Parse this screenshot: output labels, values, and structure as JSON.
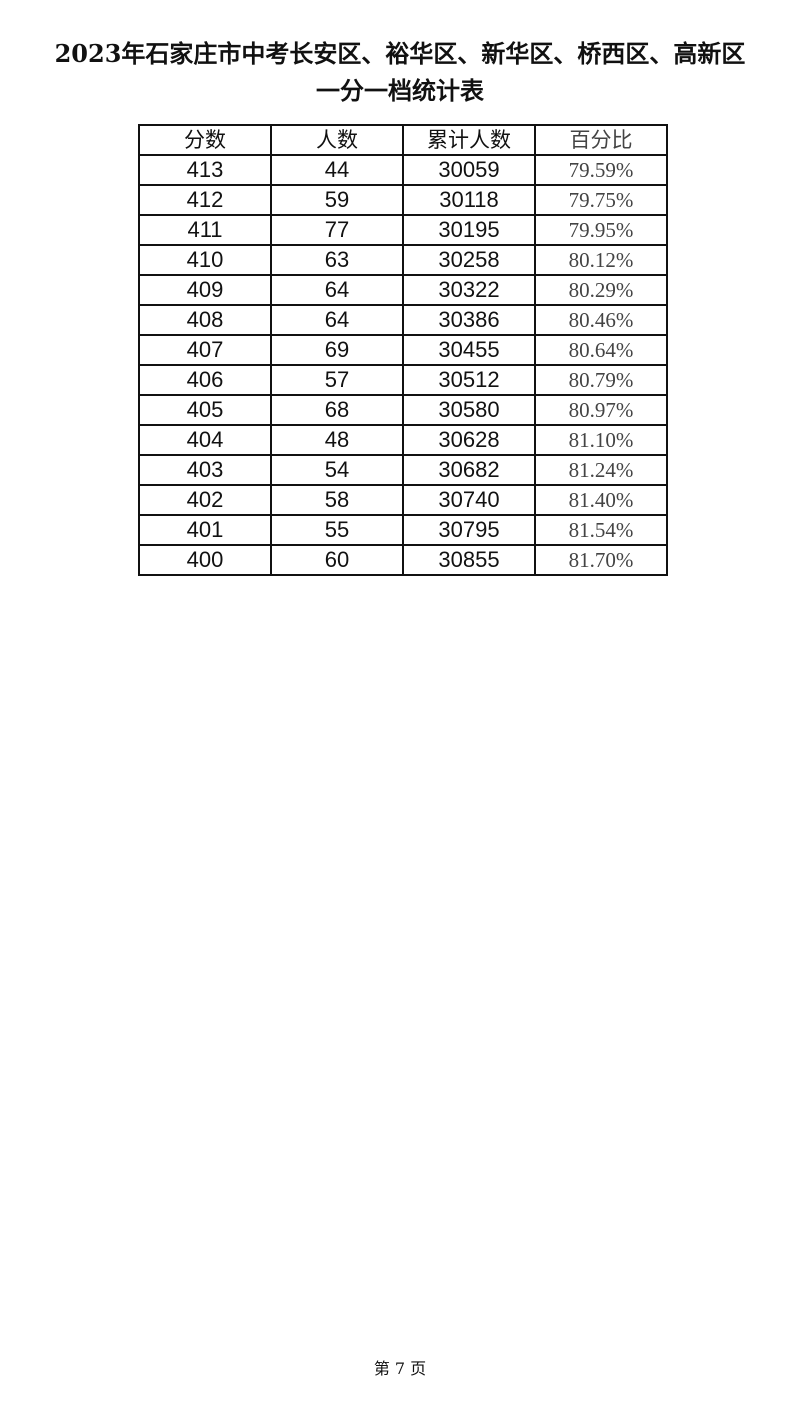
{
  "title_line1": "2023年石家庄市中考长安区、裕华区、新华区、桥西区、高新区",
  "title_line2": "一分一档统计表",
  "table": {
    "headers": [
      "分数",
      "人数",
      "累计人数",
      "百分比"
    ],
    "rows": [
      [
        "413",
        "44",
        "30059",
        "79.59%"
      ],
      [
        "412",
        "59",
        "30118",
        "79.75%"
      ],
      [
        "411",
        "77",
        "30195",
        "79.95%"
      ],
      [
        "410",
        "63",
        "30258",
        "80.12%"
      ],
      [
        "409",
        "64",
        "30322",
        "80.29%"
      ],
      [
        "408",
        "64",
        "30386",
        "80.46%"
      ],
      [
        "407",
        "69",
        "30455",
        "80.64%"
      ],
      [
        "406",
        "57",
        "30512",
        "80.79%"
      ],
      [
        "405",
        "68",
        "30580",
        "80.97%"
      ],
      [
        "404",
        "48",
        "30628",
        "81.10%"
      ],
      [
        "403",
        "54",
        "30682",
        "81.24%"
      ],
      [
        "402",
        "58",
        "30740",
        "81.40%"
      ],
      [
        "401",
        "55",
        "30795",
        "81.54%"
      ],
      [
        "400",
        "60",
        "30855",
        "81.70%"
      ]
    ]
  },
  "footer": "第 7 页"
}
